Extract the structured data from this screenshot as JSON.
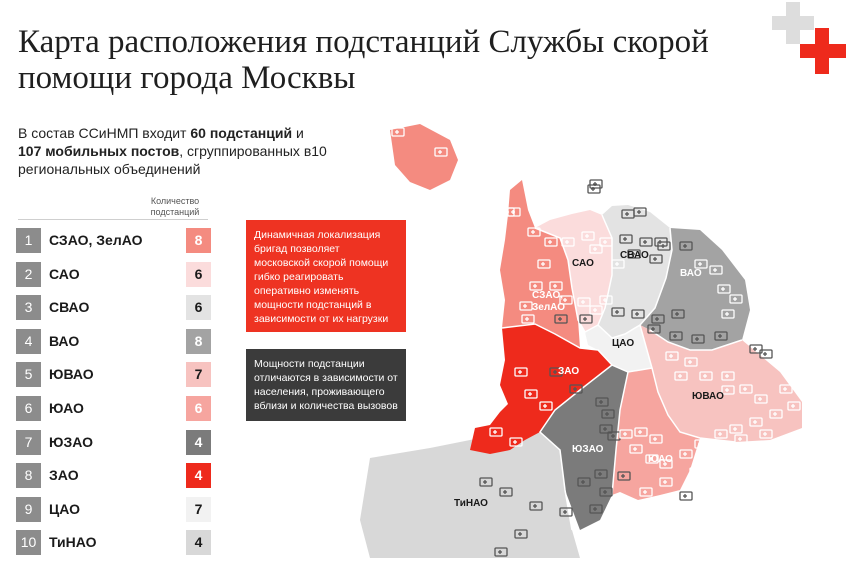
{
  "title": "Карта расположения подстанций Службы скорой помощи города Москвы",
  "intro": {
    "p1": "В состав ССиНМП входит ",
    "b1": "60 подстанций",
    "p2": " и ",
    "b2": "107 мобильных постов",
    "p3": ", сгруппированных в10 региональных объединений"
  },
  "column_header": "Количество подстанций",
  "districts": [
    {
      "num": "1",
      "name": "СЗАО, ЗелАО",
      "count": "8",
      "color": "#f48b80"
    },
    {
      "num": "2",
      "name": "САО",
      "count": "6",
      "color": "#fbdcdc"
    },
    {
      "num": "3",
      "name": "СВАО",
      "count": "6",
      "color": "#e3e3e3"
    },
    {
      "num": "4",
      "name": "ВАО",
      "count": "8",
      "color": "#a3a3a3"
    },
    {
      "num": "5",
      "name": "ЮВАО",
      "count": "7",
      "color": "#f7c3c0"
    },
    {
      "num": "6",
      "name": "ЮАО",
      "count": "6",
      "color": "#f6a59f"
    },
    {
      "num": "7",
      "name": "ЮЗАО",
      "count": "4",
      "color": "#7b7b7b"
    },
    {
      "num": "8",
      "name": "ЗАО",
      "count": "4",
      "color": "#ee2a1c"
    },
    {
      "num": "9",
      "name": "ЦАО",
      "count": "7",
      "color": "#f2f2f2"
    },
    {
      "num": "10",
      "name": "ТиНАО",
      "count": "4",
      "color": "#d8d8d8"
    }
  ],
  "callouts": {
    "red": "Динамичная локализация бригад позволяет московской скорой помощи гибко реагировать оперативно изменять мощности подстанций в зависимости от их нагрузки",
    "dark": "Мощности подстанции отличаются в зависимости от населения, проживающего вблизи и количества вызовов"
  },
  "map_labels": {
    "sao": "САО",
    "svao": "СВАО",
    "vao": "ВАО",
    "szao1": "СЗАО,",
    "szao2": "ЗелАО",
    "cao": "ЦАО",
    "zao": "ЗАО",
    "uvao": "ЮВАО",
    "uzao": "ЮЗАО",
    "uao": "ЮАО",
    "tinao": "ТиНАО"
  },
  "colors": {
    "accent_red": "#ee3322",
    "dark_box": "#3b3b3b",
    "logo_gray": "#dddddd",
    "logo_red": "#ee2a1c"
  },
  "icons": {
    "logo": "medical-cross-logo",
    "station": "ambulance-icon"
  }
}
